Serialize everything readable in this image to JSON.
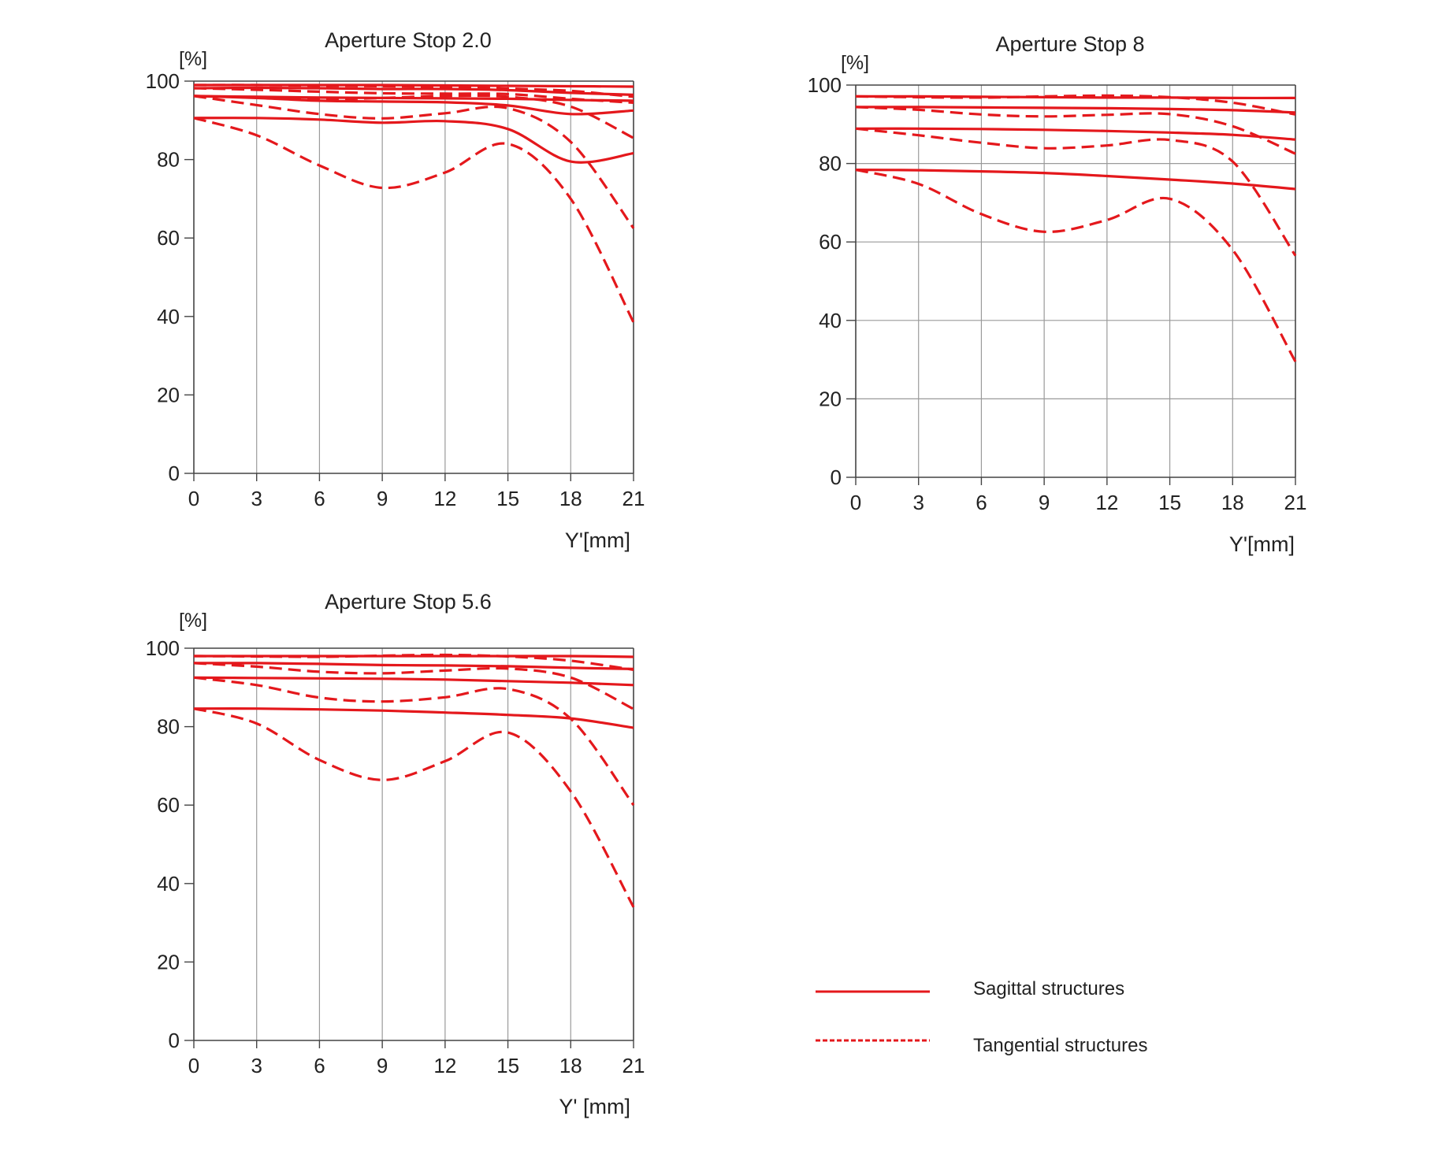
{
  "colors": {
    "curve": "#e4181c",
    "grid": "#9a9a9a",
    "frame": "#444444",
    "text": "#222222"
  },
  "legend": {
    "sagittal_label": "Sagittal structures",
    "tangential_label": "Tangential structures"
  },
  "chart_data": [
    {
      "type": "line",
      "title": "Aperture Stop 2.0",
      "ylabel": "[%]",
      "xlabel": "Y'[mm]",
      "xlim": [
        0,
        21
      ],
      "ylim": [
        0,
        100
      ],
      "xticks": [
        0,
        3,
        6,
        9,
        12,
        15,
        18,
        21
      ],
      "yticks": [
        0,
        20,
        40,
        60,
        80,
        100
      ],
      "grid": "vertical",
      "series": [
        {
          "style": "solid",
          "x": [
            0,
            3,
            6,
            9,
            12,
            15,
            18,
            21
          ],
          "y": [
            99,
            99,
            99,
            99,
            98.9,
            98.8,
            98.7,
            98.6
          ]
        },
        {
          "style": "dashed",
          "x": [
            0,
            3,
            6,
            9,
            12,
            15,
            18,
            21
          ],
          "y": [
            99,
            99,
            98.8,
            98.7,
            98.5,
            98.1,
            97.5,
            96
          ]
        },
        {
          "style": "solid",
          "x": [
            0,
            3,
            6,
            9,
            12,
            15,
            18,
            21
          ],
          "y": [
            98.2,
            98.3,
            98.2,
            98.0,
            98.0,
            97.7,
            97.0,
            96.5
          ]
        },
        {
          "style": "dashed",
          "x": [
            0,
            3,
            6,
            9,
            12,
            15,
            18,
            21
          ],
          "y": [
            98.2,
            97.8,
            97.3,
            96.9,
            96.8,
            96.7,
            95.5,
            94.5
          ]
        },
        {
          "style": "solid",
          "x": [
            0,
            3,
            6,
            9,
            12,
            15,
            18,
            21
          ],
          "y": [
            96.2,
            96.0,
            95.8,
            95.7,
            95.6,
            95.5,
            95.2,
            95.0
          ]
        },
        {
          "style": "dashed",
          "x": [
            0,
            3,
            6,
            9,
            12,
            15,
            18,
            21
          ],
          "y": [
            96.2,
            95.8,
            95.4,
            95.7,
            96.2,
            96.0,
            93.5,
            85.5
          ]
        },
        {
          "style": "solid",
          "x": [
            0,
            3,
            6,
            9,
            12,
            15,
            18,
            21
          ],
          "y": [
            96.2,
            95.7,
            95.0,
            94.8,
            94.6,
            93.8,
            91.6,
            92.5
          ]
        },
        {
          "style": "dashed",
          "x": [
            0,
            3,
            6,
            9,
            12,
            15,
            18,
            21
          ],
          "y": [
            96.2,
            93.9,
            91.6,
            90.5,
            91.8,
            93.1,
            84.5,
            62.5
          ]
        },
        {
          "style": "solid",
          "x": [
            0,
            3,
            6,
            9,
            12,
            15,
            18,
            21
          ],
          "y": [
            90.6,
            90.6,
            90.2,
            89.4,
            89.8,
            87.8,
            79.5,
            81.6
          ]
        },
        {
          "style": "dashed",
          "x": [
            0,
            3,
            6,
            9,
            12,
            15,
            18,
            21
          ],
          "y": [
            90.6,
            86.2,
            78.5,
            72.8,
            76.7,
            84.0,
            70.0,
            38.5
          ]
        }
      ]
    },
    {
      "type": "line",
      "title": "Aperture Stop 8",
      "ylabel": "[%]",
      "xlabel": "Y'[mm]",
      "xlim": [
        0,
        21
      ],
      "ylim": [
        0,
        100
      ],
      "xticks": [
        0,
        3,
        6,
        9,
        12,
        15,
        18,
        21
      ],
      "yticks": [
        0,
        20,
        40,
        60,
        80,
        100
      ],
      "grid": "both",
      "series": [
        {
          "style": "solid",
          "x": [
            0,
            3,
            6,
            9,
            12,
            15,
            18,
            21
          ],
          "y": [
            97.1,
            97.1,
            97.0,
            96.9,
            96.8,
            96.8,
            96.7,
            96.7
          ]
        },
        {
          "style": "dashed",
          "x": [
            0,
            3,
            6,
            9,
            12,
            15,
            18,
            21
          ],
          "y": [
            97.1,
            96.9,
            96.8,
            97.1,
            97.3,
            96.9,
            95.5,
            92.5
          ]
        },
        {
          "style": "solid",
          "x": [
            0,
            3,
            6,
            9,
            12,
            15,
            18,
            21
          ],
          "y": [
            94.4,
            94.4,
            94.3,
            94.2,
            94.1,
            93.9,
            93.6,
            93.0
          ]
        },
        {
          "style": "dashed",
          "x": [
            0,
            3,
            6,
            9,
            12,
            15,
            18,
            21
          ],
          "y": [
            94.4,
            93.7,
            92.5,
            92.0,
            92.4,
            92.6,
            89.5,
            82.5
          ]
        },
        {
          "style": "solid",
          "x": [
            0,
            3,
            6,
            9,
            12,
            15,
            18,
            21
          ],
          "y": [
            88.9,
            88.9,
            88.8,
            88.6,
            88.3,
            87.9,
            87.3,
            86.1
          ]
        },
        {
          "style": "dashed",
          "x": [
            0,
            3,
            6,
            9,
            12,
            15,
            18,
            21
          ],
          "y": [
            88.9,
            87.2,
            85.3,
            83.9,
            84.6,
            86.0,
            80.5,
            56.5
          ]
        },
        {
          "style": "solid",
          "x": [
            0,
            3,
            6,
            9,
            12,
            15,
            18,
            21
          ],
          "y": [
            78.4,
            78.3,
            78.0,
            77.6,
            76.8,
            75.9,
            74.9,
            73.5
          ]
        },
        {
          "style": "dashed",
          "x": [
            0,
            3,
            6,
            9,
            12,
            15,
            18,
            21
          ],
          "y": [
            78.4,
            74.8,
            67.1,
            62.6,
            65.6,
            71.0,
            58.0,
            29.5
          ]
        }
      ]
    },
    {
      "type": "line",
      "title": "Aperture Stop 5.6",
      "ylabel": "[%]",
      "xlabel": "Y' [mm]",
      "xlim": [
        0,
        21
      ],
      "ylim": [
        0,
        100
      ],
      "xticks": [
        0,
        3,
        6,
        9,
        12,
        15,
        18,
        21
      ],
      "yticks": [
        0,
        20,
        40,
        60,
        80,
        100
      ],
      "grid": "vertical",
      "series": [
        {
          "style": "solid",
          "x": [
            0,
            3,
            6,
            9,
            12,
            15,
            18,
            21
          ],
          "y": [
            98,
            98,
            98,
            98,
            98,
            98,
            98,
            97.8
          ]
        },
        {
          "style": "dashed",
          "x": [
            0,
            3,
            6,
            9,
            12,
            15,
            18,
            21
          ],
          "y": [
            98,
            97.9,
            97.8,
            98.1,
            98.3,
            97.9,
            96.8,
            94.5
          ]
        },
        {
          "style": "solid",
          "x": [
            0,
            3,
            6,
            9,
            12,
            15,
            18,
            21
          ],
          "y": [
            96.2,
            96.2,
            96.0,
            95.7,
            95.6,
            95.4,
            95.0,
            94.7
          ]
        },
        {
          "style": "dashed",
          "x": [
            0,
            3,
            6,
            9,
            12,
            15,
            18,
            21
          ],
          "y": [
            96.2,
            95.3,
            94.0,
            93.6,
            94.3,
            94.8,
            92.5,
            84.5
          ]
        },
        {
          "style": "solid",
          "x": [
            0,
            3,
            6,
            9,
            12,
            15,
            18,
            21
          ],
          "y": [
            92.5,
            92.4,
            92.3,
            92.2,
            92.0,
            91.6,
            91.2,
            90.6
          ]
        },
        {
          "style": "dashed",
          "x": [
            0,
            3,
            6,
            9,
            12,
            15,
            18,
            21
          ],
          "y": [
            92.5,
            90.6,
            87.4,
            86.4,
            87.5,
            89.6,
            82.0,
            60.0
          ]
        },
        {
          "style": "solid",
          "x": [
            0,
            3,
            6,
            9,
            12,
            15,
            18,
            21
          ],
          "y": [
            84.6,
            84.6,
            84.4,
            84.1,
            83.6,
            83.0,
            82.1,
            79.7
          ]
        },
        {
          "style": "dashed",
          "x": [
            0,
            3,
            6,
            9,
            12,
            15,
            18,
            21
          ],
          "y": [
            84.6,
            80.8,
            71.5,
            66.4,
            71.2,
            78.5,
            63.5,
            34.0
          ]
        }
      ]
    }
  ]
}
